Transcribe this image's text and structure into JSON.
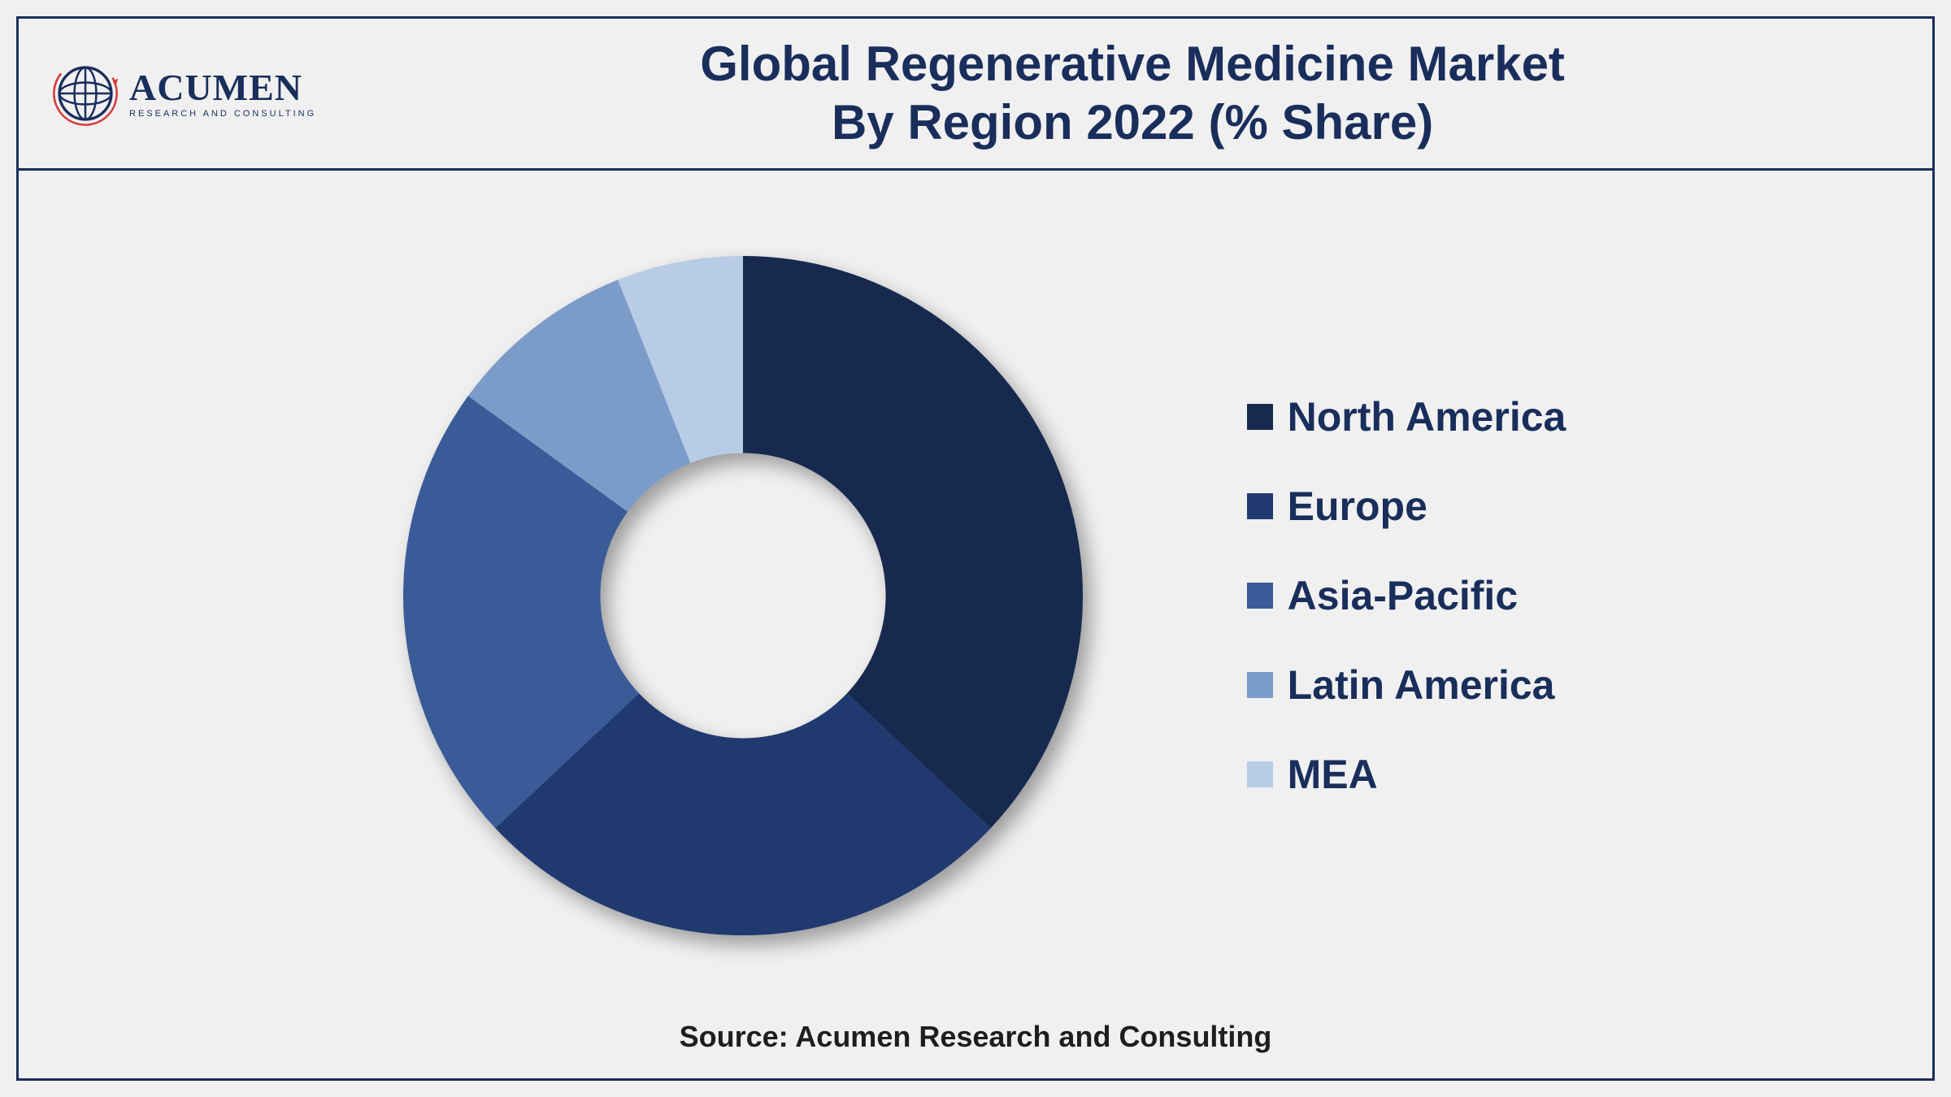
{
  "logo": {
    "name": "ACUMEN",
    "subtitle": "RESEARCH AND CONSULTING",
    "globe_stroke": "#1a2e5c",
    "globe_accent": "#d73838"
  },
  "title": {
    "line1": "Global Regenerative Medicine Market",
    "line2": "By Region 2022 (% Share)",
    "color": "#1a2e5c",
    "fontsize": 60
  },
  "chart": {
    "type": "donut",
    "inner_radius_pct": 42,
    "outer_radius_pct": 100,
    "background_color": "#f0f0f0",
    "start_angle_deg": 0,
    "slices": [
      {
        "label": "North America",
        "value": 37,
        "color": "#17294e"
      },
      {
        "label": "Europe",
        "value": 26,
        "color": "#20396f"
      },
      {
        "label": "Asia-Pacific",
        "value": 22,
        "color": "#3a5b98"
      },
      {
        "label": "Latin America",
        "value": 9,
        "color": "#7b9bc9"
      },
      {
        "label": "MEA",
        "value": 6,
        "color": "#b8cce5"
      }
    ]
  },
  "legend": {
    "fontsize": 50,
    "font_weight": "bold",
    "text_color": "#1a2e5c",
    "marker_size": 32
  },
  "footer": {
    "text": "Source: Acumen Research and Consulting",
    "fontsize": 36,
    "color": "#1e1e1e"
  },
  "frame": {
    "border_color": "#1a2e5c",
    "border_width": 3,
    "background": "#f0f0f0"
  }
}
